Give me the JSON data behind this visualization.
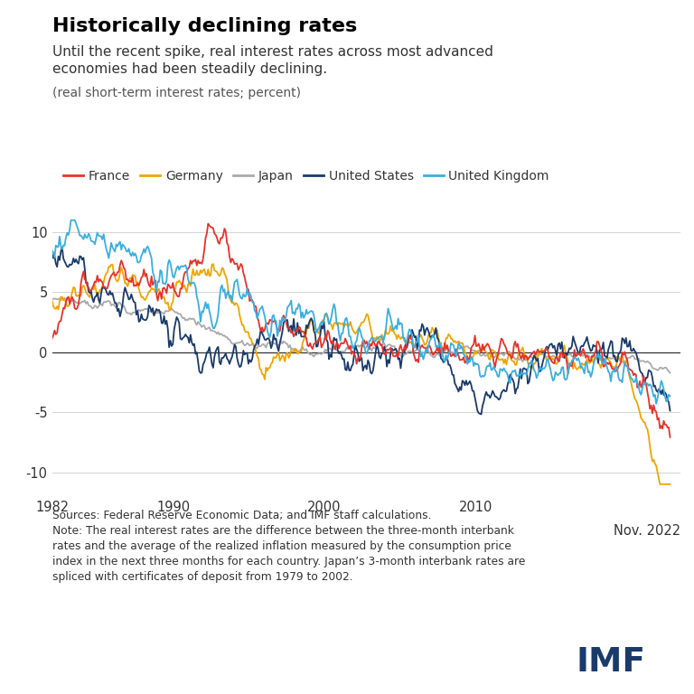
{
  "title": "Historically declining rates",
  "subtitle_line1": "Until the recent spike, real interest rates across most advanced",
  "subtitle_line2": "economies had been steadily declining.",
  "ylabel_note": "(real short-term interest rates; percent)",
  "countries": [
    "France",
    "Germany",
    "Japan",
    "United States",
    "United Kingdom"
  ],
  "colors": {
    "France": "#e63329",
    "Germany": "#f0a500",
    "Japan": "#aaaaaa",
    "United States": "#1a3a6b",
    "United Kingdom": "#3aaee0"
  },
  "ylim": [
    -12,
    12
  ],
  "yticks": [
    -10,
    -5,
    0,
    5,
    10
  ],
  "sources_text": "Sources: Federal Reserve Economic Data; and IMF staff calculations.\nNote: The real interest rates are the difference between the three-month interbank\nrates and the average of the realized inflation measured by the consumption price\nindex in the next three months for each country. Japan’s 3-month interbank rates are\nspliced with certificates of deposit from 1979 to 2002.",
  "background_color": "#ffffff",
  "imf_color": "#1a3a6b"
}
